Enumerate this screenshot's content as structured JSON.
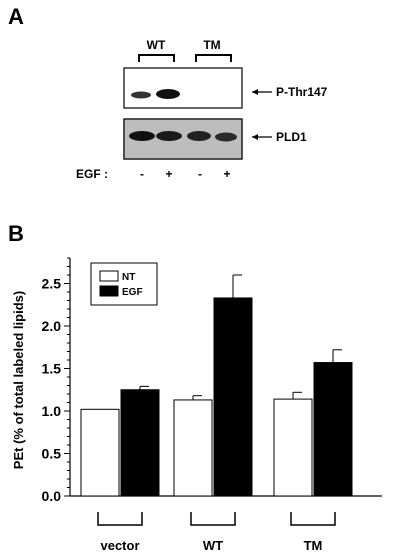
{
  "panel_a": {
    "letter": "A",
    "groups": [
      "WT",
      "TM"
    ],
    "blots": [
      {
        "label": "P-Thr147"
      },
      {
        "label": "PLD1"
      }
    ],
    "egf": {
      "label": "EGF :",
      "signs": [
        "-",
        "+",
        "-",
        "+"
      ]
    }
  },
  "panel_b": {
    "letter": "B"
  },
  "chart_data": {
    "type": "bar",
    "ylabel": "PEt (% of total labeled lipids)",
    "xlabel": "",
    "categories": [
      "vector",
      "WT",
      "TM"
    ],
    "ylim": [
      0.0,
      2.8
    ],
    "yticks": [
      "0.0",
      "0.5",
      "1.0",
      "1.5",
      "2.0",
      "2.5"
    ],
    "legend": {
      "placement": "top-left"
    },
    "series": [
      {
        "name": "NT",
        "color": "#ffffff",
        "values": [
          1.02,
          1.13,
          1.14
        ],
        "errors": [
          0.0,
          0.05,
          0.08
        ]
      },
      {
        "name": "EGF",
        "color": "#000000",
        "values": [
          1.25,
          2.33,
          1.57
        ],
        "errors": [
          0.04,
          0.27,
          0.15
        ]
      }
    ]
  }
}
